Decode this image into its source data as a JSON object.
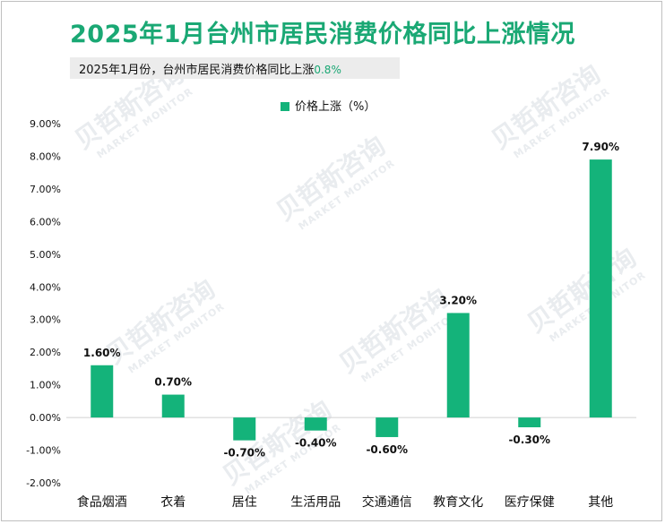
{
  "title": "2025年1月台州市居民消费价格同比上涨情况",
  "subtitle": {
    "text": "2025年1月份，台州市居民消费价格同比上涨",
    "highlight": "0.8%"
  },
  "watermark": {
    "cn": "贝哲斯咨询",
    "en": "MARKET MONITOR"
  },
  "chart_data": {
    "type": "bar",
    "categories": [
      "食品烟酒",
      "衣着",
      "居住",
      "生活用品",
      "交通通信",
      "教育文化",
      "医疗保健",
      "其他"
    ],
    "series": [
      {
        "name": "价格上涨（%）",
        "values": [
          1.6,
          0.7,
          -0.7,
          -0.4,
          -0.6,
          3.2,
          -0.3,
          7.9
        ]
      }
    ],
    "data_labels": [
      "1.60%",
      "0.70%",
      "-0.70%",
      "-0.40%",
      "-0.60%",
      "3.20%",
      "-0.30%",
      "7.90%"
    ],
    "yticks": [
      "9.00%",
      "8.00%",
      "7.00%",
      "6.00%",
      "5.00%",
      "4.00%",
      "3.00%",
      "2.00%",
      "1.00%",
      "0.00%",
      "-1.00%",
      "-2.00%"
    ],
    "ylim": [
      -2,
      9
    ],
    "legend_position": "top-center",
    "grid": false,
    "colors": {
      "bar": "#14b37a",
      "title": "#1aa874",
      "axis": "#d0d0d0"
    }
  }
}
